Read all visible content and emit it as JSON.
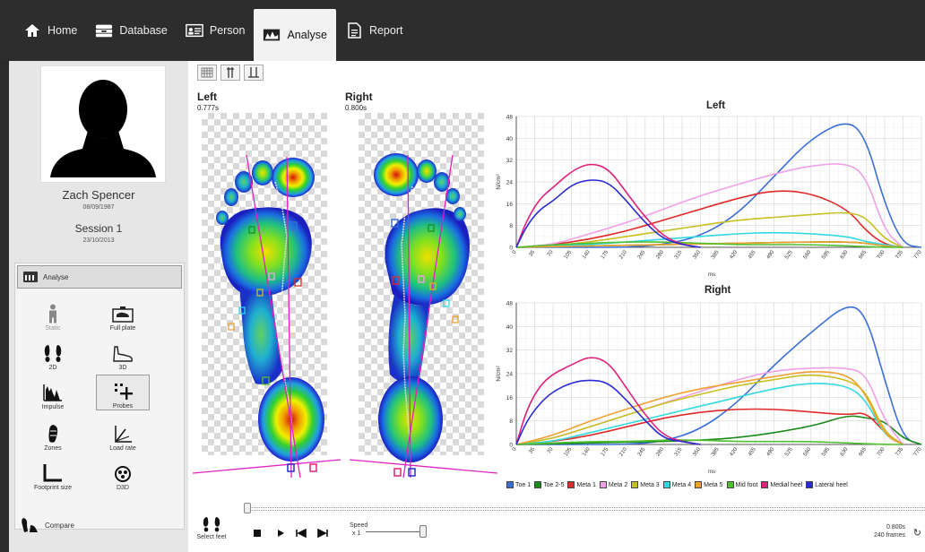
{
  "nav": {
    "tabs": [
      {
        "label": "Home",
        "icon": "home-icon"
      },
      {
        "label": "Database",
        "icon": "database-icon"
      },
      {
        "label": "Person",
        "icon": "person-card-icon"
      },
      {
        "label": "Analyse",
        "icon": "analyse-icon",
        "active": true
      },
      {
        "label": "Report",
        "icon": "report-icon"
      }
    ]
  },
  "patient": {
    "name": "Zach Spencer",
    "dob": "08/09/1987",
    "session": "Session 1",
    "session_date": "23/10/2013"
  },
  "modules": {
    "header": "Analyse",
    "tools": [
      {
        "label": "Static",
        "icon": "static-icon",
        "disabled": true
      },
      {
        "label": "Full plate",
        "icon": "full-plate-icon"
      },
      {
        "label": "2D",
        "icon": "footprints-2d-icon"
      },
      {
        "label": "3D",
        "icon": "shoe-3d-icon"
      },
      {
        "label": "Impulse",
        "icon": "impulse-icon"
      },
      {
        "label": "Probes",
        "icon": "probes-icon",
        "selected": true
      },
      {
        "label": "Zones",
        "icon": "zones-icon"
      },
      {
        "label": "Load rate",
        "icon": "load-rate-icon"
      },
      {
        "label": "Footprint size",
        "icon": "footprint-size-icon"
      },
      {
        "label": "D3D",
        "icon": "d3d-icon"
      }
    ],
    "compare": "Compare"
  },
  "feet": {
    "left": {
      "label": "Left",
      "time": "0.777s"
    },
    "right": {
      "label": "Right",
      "time": "0.800s"
    }
  },
  "colors": {
    "Toe 1": "#3a6fd8",
    "Toe 2-5": "#1a8a1a",
    "Meta 1": "#e02a2a",
    "Meta 2": "#f0a0e6",
    "Meta 3": "#c8c020",
    "Meta 4": "#30d8e0",
    "Meta 5": "#f0a030",
    "Mid foot": "#50c030",
    "Medial heel": "#e0207a",
    "Lateral heel": "#2a2ad0"
  },
  "chart_data": [
    {
      "type": "line",
      "title": "Left",
      "xlabel": "ms",
      "ylabel": "N/cm²",
      "ylim": [
        0,
        48
      ],
      "xlim": [
        0,
        770
      ],
      "yticks": [
        0,
        8,
        16,
        24,
        32,
        40,
        48
      ],
      "xticks": [
        0,
        35,
        70,
        105,
        140,
        175,
        210,
        245,
        280,
        315,
        350,
        385,
        420,
        455,
        490,
        525,
        560,
        595,
        630,
        665,
        700,
        735,
        770
      ],
      "grid": true,
      "series": [
        {
          "name": "Toe 1",
          "x": [
            0,
            70,
            140,
            210,
            280,
            350,
            420,
            490,
            560,
            630,
            665,
            700,
            735,
            770
          ],
          "values": [
            0,
            0,
            0,
            0,
            1,
            4,
            12,
            26,
            40,
            47,
            40,
            16,
            1,
            0
          ]
        },
        {
          "name": "Toe 2-5",
          "x": [
            0,
            140,
            280,
            420,
            560,
            630,
            665,
            700,
            735
          ],
          "values": [
            0,
            0.5,
            1,
            1.5,
            2,
            2,
            1.5,
            0.5,
            0
          ]
        },
        {
          "name": "Meta 1",
          "x": [
            0,
            70,
            140,
            210,
            280,
            350,
            420,
            490,
            560,
            630,
            665,
            700,
            735
          ],
          "values": [
            0,
            1,
            3,
            6,
            10,
            14,
            18,
            21,
            20,
            14,
            6,
            1,
            0
          ]
        },
        {
          "name": "Meta 2",
          "x": [
            0,
            70,
            140,
            210,
            280,
            350,
            420,
            490,
            560,
            630,
            665,
            700,
            735
          ],
          "values": [
            0,
            1,
            5,
            9,
            14,
            19,
            23,
            27,
            30,
            31,
            26,
            6,
            0
          ]
        },
        {
          "name": "Meta 3",
          "x": [
            0,
            70,
            140,
            210,
            280,
            350,
            420,
            490,
            560,
            630,
            665,
            700,
            735
          ],
          "values": [
            0,
            0.5,
            2,
            4,
            6,
            8,
            10,
            11,
            12,
            13,
            11,
            3,
            0
          ]
        },
        {
          "name": "Meta 4",
          "x": [
            0,
            70,
            140,
            210,
            280,
            350,
            420,
            490,
            560,
            630,
            665,
            700,
            735
          ],
          "values": [
            0,
            0.5,
            1,
            2,
            3,
            4,
            5,
            5.5,
            5,
            4,
            2,
            1,
            0
          ]
        },
        {
          "name": "Meta 5",
          "x": [
            0,
            140,
            280,
            420,
            560,
            630,
            665,
            700,
            735
          ],
          "values": [
            0,
            0.5,
            1,
            1.5,
            2,
            2,
            1.5,
            0.5,
            0
          ]
        },
        {
          "name": "Mid foot",
          "x": [
            0,
            70,
            140,
            210,
            280,
            350,
            420,
            490,
            560,
            630,
            700,
            735
          ],
          "values": [
            0,
            1,
            1.5,
            2,
            2,
            1.5,
            1,
            1,
            1,
            0.5,
            0,
            0
          ]
        },
        {
          "name": "Medial heel",
          "x": [
            0,
            20,
            45,
            70,
            105,
            140,
            175,
            210,
            245,
            280,
            315,
            350
          ],
          "values": [
            0,
            10,
            18,
            22,
            28,
            31,
            29,
            20,
            11,
            4,
            1,
            0
          ]
        },
        {
          "name": "Lateral heel",
          "x": [
            0,
            20,
            45,
            70,
            105,
            140,
            175,
            210,
            245,
            280,
            315,
            350
          ],
          "values": [
            0,
            8,
            14,
            17,
            23,
            25,
            24,
            17,
            9,
            3,
            1,
            0
          ]
        }
      ]
    },
    {
      "type": "line",
      "title": "Right",
      "xlabel": "ms",
      "ylabel": "N/cm²",
      "ylim": [
        0,
        48
      ],
      "xlim": [
        0,
        770
      ],
      "yticks": [
        0,
        8,
        16,
        24,
        32,
        40,
        48
      ],
      "xticks": [
        0,
        35,
        70,
        105,
        140,
        175,
        210,
        245,
        280,
        315,
        350,
        385,
        420,
        455,
        490,
        525,
        560,
        595,
        630,
        665,
        700,
        735,
        770
      ],
      "grid": true,
      "series": [
        {
          "name": "Toe 1",
          "x": [
            0,
            70,
            140,
            210,
            280,
            350,
            420,
            490,
            560,
            630,
            665,
            700,
            735,
            770
          ],
          "values": [
            0,
            0,
            0,
            0,
            1,
            5,
            14,
            27,
            38,
            48,
            44,
            22,
            2,
            0
          ]
        },
        {
          "name": "Toe 2-5",
          "x": [
            0,
            140,
            280,
            420,
            560,
            630,
            665,
            700,
            735,
            770
          ],
          "values": [
            0,
            0.5,
            1,
            2,
            6,
            10,
            9,
            8,
            2,
            0
          ]
        },
        {
          "name": "Meta 1",
          "x": [
            0,
            70,
            140,
            210,
            280,
            350,
            420,
            490,
            560,
            630,
            665,
            700,
            735
          ],
          "values": [
            0,
            1,
            3,
            6,
            9,
            11,
            12,
            12,
            11,
            10,
            11,
            4,
            0
          ]
        },
        {
          "name": "Meta 2",
          "x": [
            0,
            70,
            140,
            210,
            280,
            350,
            420,
            490,
            560,
            630,
            665,
            700,
            735
          ],
          "values": [
            0,
            2,
            6,
            10,
            14,
            18,
            22,
            25,
            26,
            26,
            24,
            8,
            0
          ]
        },
        {
          "name": "Meta 3",
          "x": [
            0,
            70,
            140,
            210,
            280,
            350,
            420,
            490,
            560,
            630,
            665,
            700,
            735
          ],
          "values": [
            0,
            2,
            6,
            10,
            14,
            17,
            20,
            22,
            24,
            22,
            18,
            4,
            0
          ]
        },
        {
          "name": "Meta 4",
          "x": [
            0,
            70,
            140,
            210,
            280,
            350,
            420,
            490,
            560,
            630,
            665,
            700,
            735
          ],
          "values": [
            0,
            1,
            4,
            7,
            10,
            13,
            16,
            19,
            21,
            20,
            15,
            3,
            0
          ]
        },
        {
          "name": "Meta 5",
          "x": [
            0,
            70,
            140,
            210,
            280,
            350,
            420,
            490,
            560,
            630,
            665,
            700,
            735
          ],
          "values": [
            0,
            3,
            8,
            12,
            16,
            19,
            21,
            23,
            25,
            24,
            17,
            3,
            0
          ]
        },
        {
          "name": "Mid foot",
          "x": [
            0,
            70,
            140,
            210,
            280,
            350,
            420,
            490,
            560,
            630,
            700,
            735
          ],
          "values": [
            0,
            0.5,
            1,
            1,
            1.5,
            1.5,
            1,
            1,
            1,
            0.5,
            0,
            0
          ]
        },
        {
          "name": "Medial heel",
          "x": [
            0,
            20,
            45,
            70,
            105,
            140,
            175,
            210,
            245,
            280,
            315,
            350
          ],
          "values": [
            0,
            12,
            20,
            24,
            27,
            30,
            28,
            19,
            10,
            3,
            1,
            0
          ]
        },
        {
          "name": "Lateral heel",
          "x": [
            0,
            20,
            45,
            70,
            105,
            140,
            175,
            210,
            245,
            280,
            315,
            350
          ],
          "values": [
            0,
            8,
            14,
            18,
            21,
            22,
            21,
            15,
            8,
            2,
            1,
            0
          ]
        }
      ]
    }
  ],
  "legend": [
    "Toe 1",
    "Toe 2-5",
    "Meta 1",
    "Meta 2",
    "Meta 3",
    "Meta 4",
    "Meta 5",
    "Mid foot",
    "Medial heel",
    "Lateral heel"
  ],
  "playback": {
    "select_feet": "Select feet",
    "speed_label": "Speed",
    "speed_value": "x 1",
    "time": "0.800s",
    "frames": "240 frames"
  }
}
